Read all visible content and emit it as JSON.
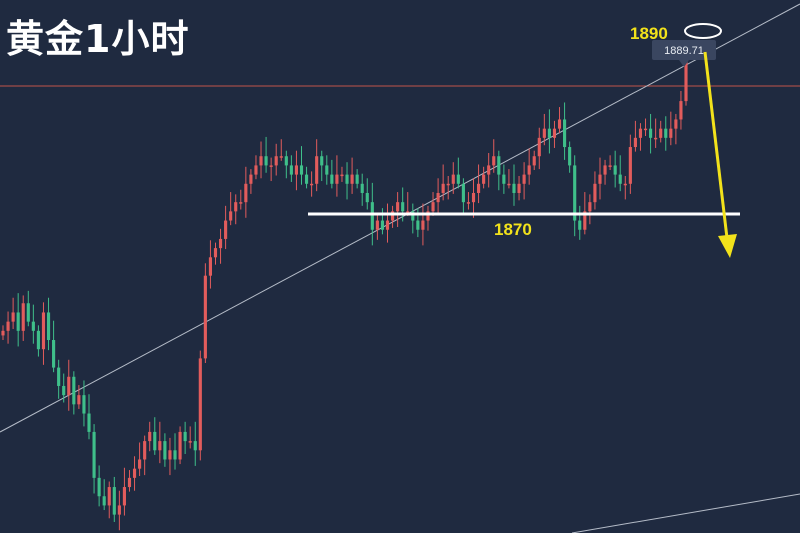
{
  "title": "黄金1小时",
  "chart_data": {
    "type": "candlestick",
    "title": "黄金1小时",
    "ylim": [
      1838,
      1896
    ],
    "current_price_label": "1889.71",
    "annotations": {
      "resistance_label": "1890",
      "support_label": "1870",
      "support_level": 1870,
      "resistance_level": 1890,
      "arrow": "down"
    },
    "colors": {
      "background": "#1f2a40",
      "up": "#e25c5c",
      "down": "#3fbf8a",
      "annotation": "#f2e21b",
      "price_line": "#c0544a",
      "trendline": "#b5bcc8",
      "support_line": "#ffffff"
    },
    "closes": [
      1860,
      1861,
      1862,
      1860,
      1863,
      1861,
      1860,
      1858,
      1862,
      1859,
      1856,
      1854,
      1853,
      1855,
      1852,
      1853,
      1851,
      1849,
      1844,
      1842,
      1841,
      1843,
      1840,
      1841,
      1843,
      1844,
      1845,
      1846,
      1848,
      1849,
      1847,
      1848,
      1846,
      1847,
      1846,
      1849,
      1848,
      1848,
      1847,
      1857,
      1866,
      1868,
      1869,
      1870,
      1872,
      1873,
      1874,
      1874,
      1876,
      1877,
      1878,
      1879,
      1878,
      1878,
      1879,
      1879,
      1878,
      1877,
      1878,
      1877,
      1876,
      1876,
      1879,
      1878,
      1877,
      1876,
      1877,
      1877,
      1876,
      1877,
      1876,
      1875,
      1874,
      1871,
      1872,
      1871,
      1872,
      1873,
      1874,
      1873,
      1873,
      1872,
      1871,
      1872,
      1873,
      1874,
      1875,
      1876,
      1876,
      1877,
      1876,
      1874,
      1874,
      1875,
      1876,
      1877,
      1878,
      1879,
      1877,
      1876,
      1876,
      1875,
      1876,
      1877,
      1878,
      1879,
      1881,
      1882,
      1881,
      1882,
      1883,
      1880,
      1878,
      1872,
      1871,
      1873,
      1874,
      1876,
      1877,
      1878,
      1878,
      1877,
      1876,
      1876,
      1880,
      1881,
      1882,
      1882,
      1881,
      1881,
      1882,
      1881,
      1882,
      1883,
      1885,
      1889.71
    ]
  }
}
